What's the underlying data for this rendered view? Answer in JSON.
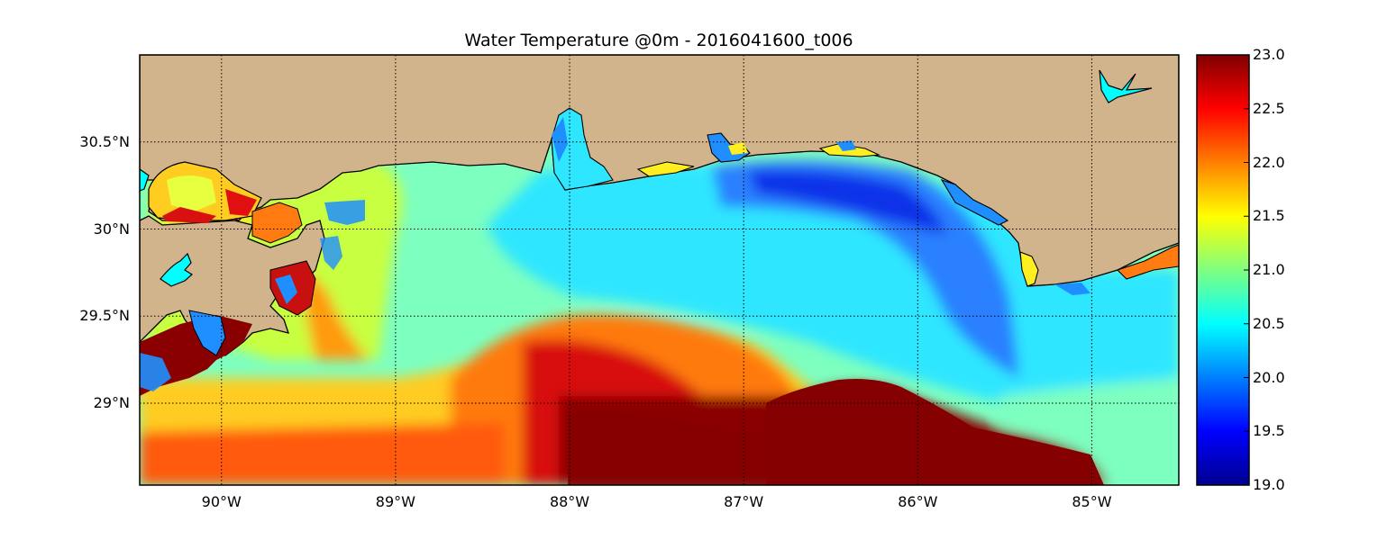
{
  "map": {
    "title": "Water Temperature @0m - 2016041600_t006",
    "lon_range": [
      -90.47,
      -84.5
    ],
    "lat_range": [
      28.53,
      31.0
    ],
    "longitude_ticks": [
      {
        "value": -90,
        "label": "90°W"
      },
      {
        "value": -89,
        "label": "89°W"
      },
      {
        "value": -88,
        "label": "88°W"
      },
      {
        "value": -87,
        "label": "87°W"
      },
      {
        "value": -86,
        "label": "86°W"
      },
      {
        "value": -85,
        "label": "85°W"
      }
    ],
    "latitude_ticks": [
      {
        "value": 30.5,
        "label": "30.5°N"
      },
      {
        "value": 30.0,
        "label": "30°N"
      },
      {
        "value": 29.5,
        "label": "29.5°N"
      },
      {
        "value": 29.0,
        "label": "29°N"
      }
    ],
    "gridlines": "dotted",
    "land_color": "#d2b48c",
    "inland_water_color": "#00ffff",
    "coastline_color": "#000000"
  },
  "colorbar": {
    "colormap": "jet",
    "min": 19.0,
    "max": 23.0,
    "ticks": [
      {
        "value": 23.0,
        "label": "23.0"
      },
      {
        "value": 22.5,
        "label": "22.5"
      },
      {
        "value": 22.0,
        "label": "22.0"
      },
      {
        "value": 21.5,
        "label": "21.5"
      },
      {
        "value": 21.0,
        "label": "21.0"
      },
      {
        "value": 20.5,
        "label": "20.5"
      },
      {
        "value": 20.0,
        "label": "20.0"
      },
      {
        "value": 19.5,
        "label": "19.5"
      },
      {
        "value": 19.0,
        "label": "19.0"
      }
    ]
  }
}
